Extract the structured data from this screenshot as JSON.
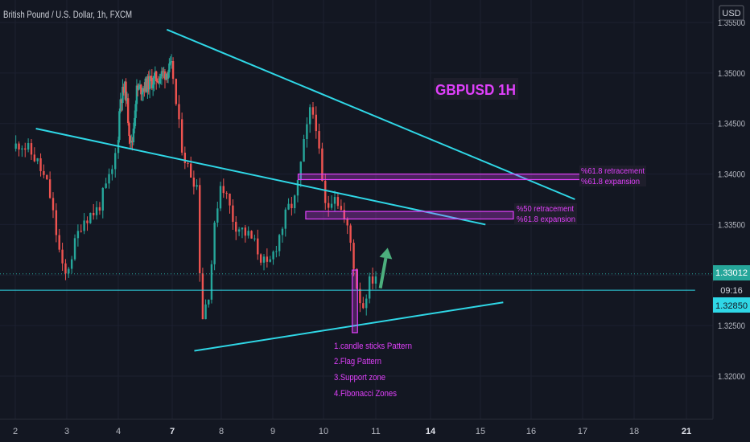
{
  "header": {
    "symbol_title": "British Pound / U.S. Dollar, 1h, FXCM",
    "currency": "USD"
  },
  "annotation": {
    "title": "GBPUSD 1H",
    "fib_upper": [
      "%61.8 retracement",
      "%61.8 expansion"
    ],
    "fib_lower": [
      "%50 retracement",
      "%61.8 expansion"
    ],
    "reasons": [
      "1.candle sticks Pattern",
      "2.Flag Pattern",
      "3.Support zone",
      "4.Fibonacci Zones"
    ]
  },
  "price_badges": {
    "last_price": "1.33012",
    "countdown": "09:16",
    "line_price": "1.32850"
  },
  "colors": {
    "bull": "#26a69a",
    "bear": "#ef5350",
    "trendline": "#2fd7e6",
    "annotation": "#e040fb",
    "arrow": "#4caf7d",
    "background": "#131722"
  },
  "chart_data": {
    "type": "candlestick",
    "instrument": "GBPUSD",
    "timeframe": "1h",
    "y_ticks": [
      "1.35500",
      "1.35000",
      "1.34500",
      "1.34000",
      "1.33500",
      "1.33000",
      "1.32500",
      "1.32000"
    ],
    "x_ticks": [
      "2",
      "3",
      "4",
      "7",
      "8",
      "9",
      "10",
      "11",
      "14",
      "15",
      "16",
      "17",
      "18",
      "21"
    ],
    "bold_x_ticks": [
      "7",
      "14",
      "21"
    ],
    "ylim": [
      1.3145,
      1.3565
    ],
    "price_scale": [
      {
        "price": 1.355,
        "y": 28
      },
      {
        "price": 1.32,
        "y": 468
      }
    ],
    "x_axis_days": [
      {
        "day": 2,
        "x": 19
      },
      {
        "day": 3,
        "x": 83
      },
      {
        "day": 4,
        "x": 147
      },
      {
        "day": 7,
        "x": 214
      },
      {
        "day": 8,
        "x": 275
      },
      {
        "day": 9,
        "x": 339
      },
      {
        "day": 10,
        "x": 402
      },
      {
        "day": 11,
        "x": 467
      },
      {
        "day": 14,
        "x": 535
      },
      {
        "day": 15,
        "x": 597
      },
      {
        "day": 16,
        "x": 660
      },
      {
        "day": 17,
        "x": 724
      },
      {
        "day": 18,
        "x": 788
      },
      {
        "day": 21,
        "x": 853
      }
    ],
    "close_series_key_points": [
      {
        "day": 1.95,
        "price": 1.3425
      },
      {
        "day": 2.1,
        "price": 1.3432
      },
      {
        "day": 2.4,
        "price": 1.3415
      },
      {
        "day": 2.65,
        "price": 1.3385
      },
      {
        "day": 2.95,
        "price": 1.3295
      },
      {
        "day": 3.3,
        "price": 1.3355
      },
      {
        "day": 3.6,
        "price": 1.3365
      },
      {
        "day": 3.9,
        "price": 1.3405
      },
      {
        "day": 4.1,
        "price": 1.3475
      },
      {
        "day": 4.4,
        "price": 1.3485
      },
      {
        "day": 4.6,
        "price": 1.3445
      },
      {
        "day": 4.75,
        "price": 1.3425
      },
      {
        "day": 5.0,
        "price": 1.3482
      },
      {
        "day": 7.0,
        "price": 1.3505
      },
      {
        "day": 7.1,
        "price": 1.3458
      },
      {
        "day": 7.2,
        "price": 1.3428
      },
      {
        "day": 7.3,
        "price": 1.3408
      },
      {
        "day": 7.5,
        "price": 1.339
      },
      {
        "day": 7.6,
        "price": 1.3255
      },
      {
        "day": 7.75,
        "price": 1.3285
      },
      {
        "day": 7.9,
        "price": 1.3365
      },
      {
        "day": 8.0,
        "price": 1.3395
      },
      {
        "day": 8.25,
        "price": 1.3352
      },
      {
        "day": 8.6,
        "price": 1.3335
      },
      {
        "day": 8.9,
        "price": 1.3305
      },
      {
        "day": 9.1,
        "price": 1.3335
      },
      {
        "day": 9.3,
        "price": 1.3365
      },
      {
        "day": 9.45,
        "price": 1.3375
      },
      {
        "day": 9.6,
        "price": 1.3425
      },
      {
        "day": 9.75,
        "price": 1.3465
      },
      {
        "day": 9.85,
        "price": 1.3452
      },
      {
        "day": 9.95,
        "price": 1.3398
      },
      {
        "day": 10.05,
        "price": 1.3362
      },
      {
        "day": 10.2,
        "price": 1.3385
      },
      {
        "day": 10.35,
        "price": 1.3362
      },
      {
        "day": 10.5,
        "price": 1.3338
      },
      {
        "day": 10.65,
        "price": 1.3285
      },
      {
        "day": 10.75,
        "price": 1.3268
      },
      {
        "day": 10.85,
        "price": 1.329
      },
      {
        "day": 11.0,
        "price": 1.3301
      }
    ],
    "drawings": {
      "trendlines": [
        {
          "p1": {
            "day": 6.7,
            "price": 1.3543
          },
          "p2": {
            "day": 16.85,
            "price": 1.3375
          }
        },
        {
          "p1": {
            "day": 2.4,
            "price": 1.3445
          },
          "p2": {
            "day": 15.1,
            "price": 1.335
          }
        },
        {
          "p1": {
            "day": 7.45,
            "price": 1.3225
          },
          "p2": {
            "day": 15.45,
            "price": 1.3273
          }
        },
        {
          "p1": {
            "day": 1.0,
            "price": 1.3285
          },
          "p2": {
            "day": 21.5,
            "price": 1.3285
          }
        }
      ],
      "fib_zones": [
        {
          "from_day": 9.5,
          "to_day": 16.98,
          "price_high": 1.34,
          "price_low": 1.33945
        },
        {
          "from_day": 9.65,
          "to_day": 15.65,
          "price_high": 1.3363,
          "price_low": 1.33555
        }
      ],
      "candle_pattern_box": {
        "from_day": 10.55,
        "to_day": 10.65,
        "price_high": 1.3305,
        "price_low": 1.3243
      },
      "arrow": {
        "from": {
          "day": 11.25,
          "price": 1.3287
        },
        "to": {
          "day": 11.65,
          "price": 1.3327
        }
      }
    }
  }
}
